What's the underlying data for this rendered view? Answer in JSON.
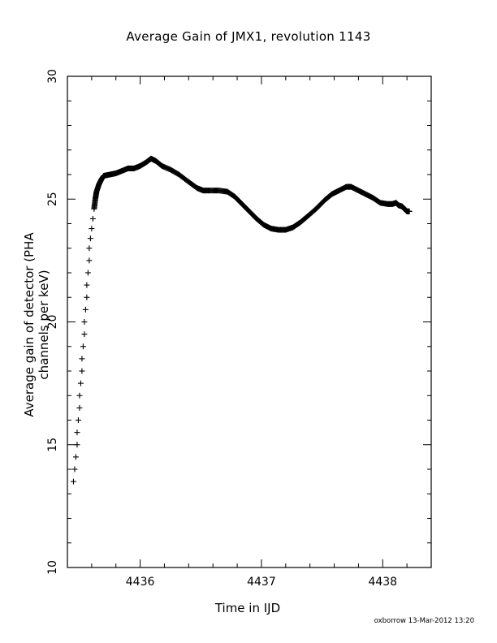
{
  "chart_data": {
    "type": "scatter",
    "title": "Average Gain of JMX1, revolution 1143",
    "xlabel": "Time in IJD",
    "ylabel": "Average gain of detector (PHA channels per keV)",
    "xlim": [
      4435.4,
      4438.4
    ],
    "ylim": [
      10,
      30
    ],
    "x_ticks": [
      "4436",
      "4437",
      "4438"
    ],
    "y_ticks": [
      "10",
      "15",
      "20",
      "25",
      "30"
    ],
    "grid": false,
    "legend": "none",
    "marker": "+",
    "series": [
      {
        "color": "#000000",
        "points": [
          [
            4435.45,
            13.5
          ],
          [
            4435.46,
            14.0
          ],
          [
            4435.47,
            14.5
          ],
          [
            4435.48,
            15.0
          ],
          [
            4435.48,
            15.5
          ],
          [
            4435.49,
            16.0
          ],
          [
            4435.5,
            16.5
          ],
          [
            4435.5,
            17.0
          ],
          [
            4435.51,
            17.5
          ],
          [
            4435.52,
            18.0
          ],
          [
            4435.52,
            18.5
          ],
          [
            4435.53,
            19.0
          ],
          [
            4435.54,
            19.5
          ],
          [
            4435.54,
            20.0
          ],
          [
            4435.55,
            20.5
          ],
          [
            4435.56,
            21.0
          ],
          [
            4435.56,
            21.5
          ],
          [
            4435.57,
            22.0
          ],
          [
            4435.58,
            22.5
          ],
          [
            4435.58,
            23.0
          ],
          [
            4435.59,
            23.4
          ],
          [
            4435.6,
            23.8
          ],
          [
            4435.61,
            24.2
          ],
          [
            4435.62,
            24.6
          ],
          [
            4435.63,
            25.0
          ],
          [
            4435.64,
            25.3
          ],
          [
            4435.66,
            25.6
          ],
          [
            4435.68,
            25.8
          ],
          [
            4435.7,
            25.95
          ],
          [
            4435.75,
            26.0
          ],
          [
            4435.8,
            26.05
          ],
          [
            4435.85,
            26.15
          ],
          [
            4435.9,
            26.25
          ],
          [
            4435.95,
            26.25
          ],
          [
            4436.0,
            26.35
          ],
          [
            4436.05,
            26.5
          ],
          [
            4436.09,
            26.65
          ],
          [
            4436.13,
            26.55
          ],
          [
            4436.18,
            26.35
          ],
          [
            4436.25,
            26.2
          ],
          [
            4436.32,
            26.0
          ],
          [
            4436.4,
            25.7
          ],
          [
            4436.47,
            25.45
          ],
          [
            4436.52,
            25.35
          ],
          [
            4436.58,
            25.35
          ],
          [
            4436.65,
            25.35
          ],
          [
            4436.72,
            25.3
          ],
          [
            4436.78,
            25.1
          ],
          [
            4436.84,
            24.8
          ],
          [
            4436.9,
            24.5
          ],
          [
            4436.96,
            24.2
          ],
          [
            4437.02,
            23.95
          ],
          [
            4437.08,
            23.8
          ],
          [
            4437.14,
            23.75
          ],
          [
            4437.2,
            23.75
          ],
          [
            4437.26,
            23.85
          ],
          [
            4437.32,
            24.05
          ],
          [
            4437.38,
            24.3
          ],
          [
            4437.45,
            24.6
          ],
          [
            4437.52,
            24.95
          ],
          [
            4437.58,
            25.2
          ],
          [
            4437.64,
            25.35
          ],
          [
            4437.7,
            25.5
          ],
          [
            4437.74,
            25.5
          ],
          [
            4437.8,
            25.35
          ],
          [
            4437.86,
            25.2
          ],
          [
            4437.92,
            25.05
          ],
          [
            4437.98,
            24.85
          ],
          [
            4438.04,
            24.8
          ],
          [
            4438.08,
            24.8
          ],
          [
            4438.11,
            24.85
          ],
          [
            4438.13,
            24.75
          ],
          [
            4438.16,
            24.7
          ],
          [
            4438.18,
            24.6
          ],
          [
            4438.2,
            24.5
          ],
          [
            4438.22,
            24.5
          ]
        ]
      }
    ]
  },
  "footer": "oxborrow 13-Mar-2012 13:20"
}
